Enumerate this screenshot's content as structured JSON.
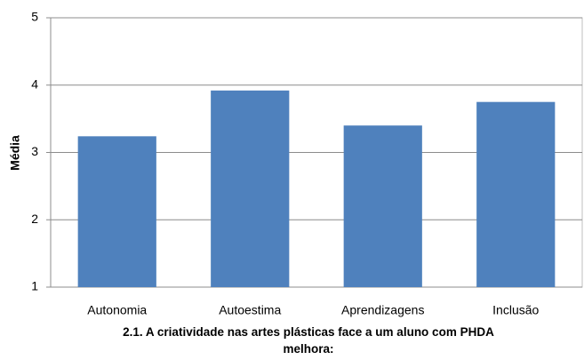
{
  "chart_data": {
    "type": "bar",
    "ylabel": "Média",
    "xlabel": "2.1. A criatividade nas artes plásticas face a um aluno com PHDA melhora:",
    "categories": [
      "Autonomia",
      "Autoestima",
      "Aprendizagens",
      "Inclusão"
    ],
    "values": [
      3.24,
      3.92,
      3.4,
      3.75
    ],
    "color": "#4f81bd",
    "ylim": [
      1,
      5
    ],
    "yticks": [
      1,
      2,
      3,
      4,
      5
    ],
    "grid": true
  }
}
